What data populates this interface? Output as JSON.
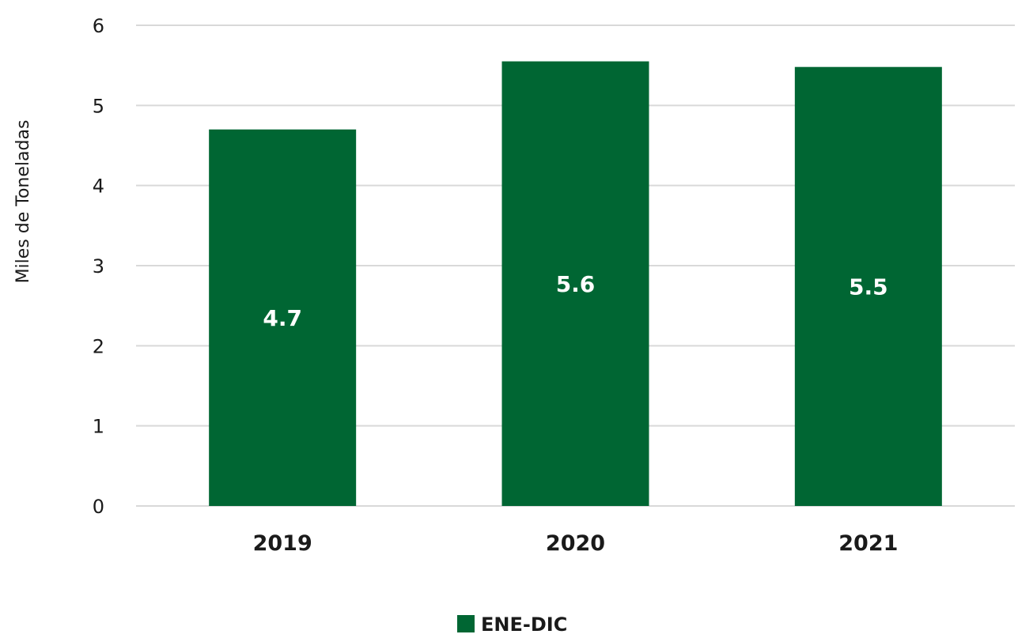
{
  "chart_data": {
    "type": "bar",
    "categories": [
      "2019",
      "2020",
      "2021"
    ],
    "series": [
      {
        "name": "ENE-DIC",
        "values": [
          4.7,
          5.55,
          5.48
        ],
        "data_labels": [
          "4.7",
          "5.6",
          "5.5"
        ]
      }
    ],
    "title": "",
    "xlabel": "",
    "ylabel": "Miles de Toneladas",
    "ylim": [
      0,
      6
    ],
    "yticks": [
      "0",
      "1",
      "2",
      "3",
      "4",
      "5",
      "6"
    ],
    "grid": true,
    "legend": "bottom-center",
    "colors": {
      "bar": "#006633",
      "grid": "#d9d9d9",
      "data_label": "#ffffff",
      "text": "#1a1a1a"
    }
  }
}
